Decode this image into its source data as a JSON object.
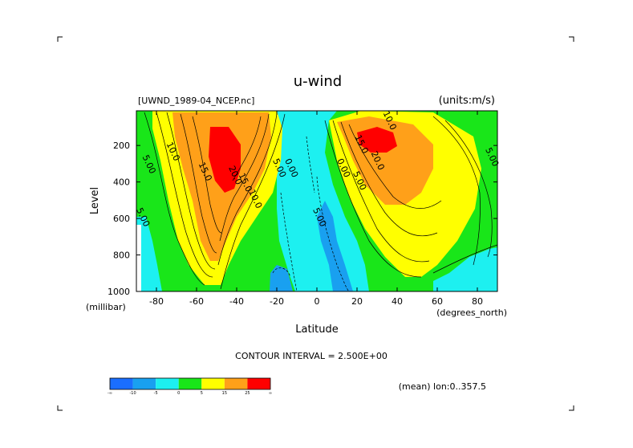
{
  "chart_data": {
    "type": "heatmap",
    "title": "u-wind",
    "dataset_label": "[UWND_1989-04_NCEP.nc]",
    "units_label": "(units:m/s)",
    "xlabel": "Latitude",
    "x_units": "(degrees_north)",
    "ylabel": "Level",
    "y_units": "(millibar)",
    "xlim": [
      -90,
      90
    ],
    "ylim": [
      1000,
      10
    ],
    "y_inverted": true,
    "x_ticks": [
      {
        "value": -80,
        "label": "-80"
      },
      {
        "value": -60,
        "label": "-60"
      },
      {
        "value": -40,
        "label": "-40"
      },
      {
        "value": -20,
        "label": "-20"
      },
      {
        "value": 0,
        "label": "0"
      },
      {
        "value": 20,
        "label": "20"
      },
      {
        "value": 40,
        "label": "40"
      },
      {
        "value": 60,
        "label": "60"
      },
      {
        "value": 80,
        "label": "80"
      }
    ],
    "y_ticks": [
      {
        "value": 200,
        "label": "200"
      },
      {
        "value": 400,
        "label": "400"
      },
      {
        "value": 600,
        "label": "600"
      },
      {
        "value": 800,
        "label": "800"
      },
      {
        "value": 1000,
        "label": "1000"
      }
    ],
    "contour_interval_label": "CONTOUR INTERVAL = 2.500E+00",
    "mean_label": "(mean) lon:0..357.5",
    "colorbar": {
      "colors": [
        "#1a6eff",
        "#19a0f0",
        "#1df0f0",
        "#19e619",
        "#ffff00",
        "#ffa019",
        "#ff0000"
      ],
      "labels": [
        "-∞",
        "-10",
        "-5",
        "0",
        "5",
        "15",
        "25",
        "∞"
      ]
    },
    "features": [
      {
        "name": "southern-jet-core",
        "lat": -50,
        "level": 250,
        "value": 25
      },
      {
        "name": "northern-jet-core",
        "lat": 30,
        "level": 180,
        "value": 25
      },
      {
        "name": "tropical-easterlies",
        "lat": 0,
        "level": 500,
        "value": -5
      }
    ],
    "contour_labels": [
      {
        "text": "10.0",
        "lat": -73,
        "level": 240
      },
      {
        "text": "5.00",
        "lat": -85,
        "level": 310
      },
      {
        "text": "5.00",
        "lat": -88,
        "level": 600
      },
      {
        "text": "15.0",
        "lat": -57,
        "level": 350
      },
      {
        "text": "20.0",
        "lat": -42,
        "level": 370
      },
      {
        "text": "15.0",
        "lat": -37,
        "level": 410
      },
      {
        "text": "10.0",
        "lat": -32,
        "level": 500
      },
      {
        "text": "5.00",
        "lat": -20,
        "level": 330
      },
      {
        "text": "0.00",
        "lat": -14,
        "level": 330
      },
      {
        "text": "5.00",
        "lat": 0,
        "level": 600
      },
      {
        "text": "0.00",
        "lat": 12,
        "level": 330
      },
      {
        "text": "5.00",
        "lat": 20,
        "level": 400
      },
      {
        "text": "10.0",
        "lat": 35,
        "level": 70
      },
      {
        "text": "15.0",
        "lat": 21,
        "level": 200
      },
      {
        "text": "20.0",
        "lat": 29,
        "level": 290
      },
      {
        "text": "5.00",
        "lat": 86,
        "level": 270
      }
    ]
  }
}
